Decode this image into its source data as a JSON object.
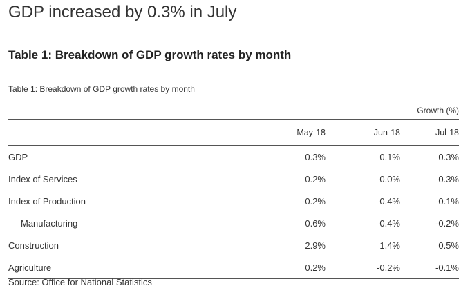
{
  "page": {
    "title": "GDP increased by 0.3% in July",
    "section_heading": "Table 1: Breakdown of GDP growth rates by month",
    "caption": "Table 1: Breakdown of GDP growth rates by month",
    "source": "Source: Office for National Statistics"
  },
  "table": {
    "units": "Growth (%)",
    "columns": [
      "",
      "May-18",
      "Jun-18",
      "Jul-18"
    ],
    "rows": [
      {
        "label": "GDP",
        "values": [
          "0.3%",
          "0.1%",
          "0.3%"
        ]
      },
      {
        "label": "Index of Services",
        "values": [
          "0.2%",
          "0.0%",
          "0.3%"
        ]
      },
      {
        "label": "Index of Production",
        "values": [
          "-0.2%",
          "0.4%",
          "0.1%"
        ]
      },
      {
        "label": "Manufacturing",
        "values": [
          "0.6%",
          "0.4%",
          "-0.2%"
        ]
      },
      {
        "label": "Construction",
        "values": [
          "2.9%",
          "1.4%",
          "0.5%"
        ]
      },
      {
        "label": "Agriculture",
        "values": [
          "0.2%",
          "-0.2%",
          "-0.1%"
        ]
      }
    ]
  }
}
